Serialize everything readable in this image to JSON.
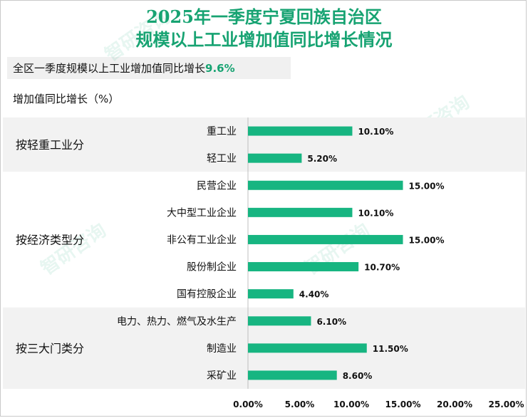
{
  "title_line1": "2025年一季度宁夏回族自治区",
  "title_line2": "规模以上工业增加值同比增长情况",
  "summary_prefix": "全区一季度规模以上工业增加值同比增长",
  "summary_value": "9.6%",
  "watermark": "智研咨询",
  "colors": {
    "bar": "#17b581",
    "accent": "#17a372",
    "band": "#f2f2f2"
  },
  "chart_data": {
    "type": "bar",
    "orientation": "horizontal",
    "ylabel": "增加值同比增长（%）",
    "xlim": [
      0,
      25
    ],
    "x_ticks": [
      "0.00%",
      "5.00%",
      "10.00%",
      "15.00%",
      "20.00%",
      "25.00%"
    ],
    "groups": [
      {
        "label": "按轻重工业分",
        "categories": [
          "重工业",
          "轻工业"
        ],
        "values": [
          10.1,
          5.2
        ],
        "value_labels": [
          "10.10%",
          "5.20%"
        ]
      },
      {
        "label": "按经济类型分",
        "categories": [
          "民营企业",
          "大中型工业企业",
          "非公有工业企业",
          "股份制企业",
          "国有控股企业"
        ],
        "values": [
          15.0,
          10.1,
          15.0,
          10.7,
          4.4
        ],
        "value_labels": [
          "15.00%",
          "10.10%",
          "15.00%",
          "10.70%",
          "4.40%"
        ]
      },
      {
        "label": "按三大门类分",
        "categories": [
          "电力、热力、燃气及水生产",
          "制造业",
          "采矿业"
        ],
        "values": [
          6.1,
          11.5,
          8.6
        ],
        "value_labels": [
          "6.10%",
          "11.50%",
          "8.60%"
        ]
      }
    ]
  }
}
